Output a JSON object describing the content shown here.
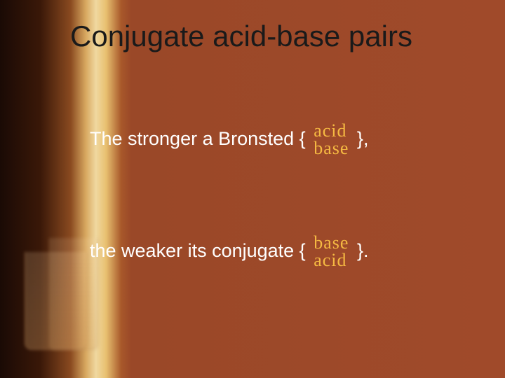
{
  "slide": {
    "background_gradient": [
      "#1a0a05",
      "#3a1808",
      "#8a4a20",
      "#d8a860",
      "#f0d8a0",
      "#e8c070",
      "#a8582a",
      "#9a4828",
      "#a04a2a"
    ],
    "title": {
      "text": "Conjugate acid-base pairs",
      "color": "#1a1a1a",
      "fontsize": 42
    },
    "body_text_color": "#ffffff",
    "body_fontsize": 27,
    "handwriting_color": "#f5b942",
    "handwriting_fontsize": 26,
    "line1": {
      "prefix": "The stronger a Bronsted {",
      "handwritten_top": "acid",
      "handwritten_bottom": "base",
      "suffix": "},"
    },
    "line2": {
      "prefix": "the weaker its conjugate {",
      "handwritten_top": "base",
      "handwritten_bottom": "acid",
      "suffix": "}."
    }
  }
}
